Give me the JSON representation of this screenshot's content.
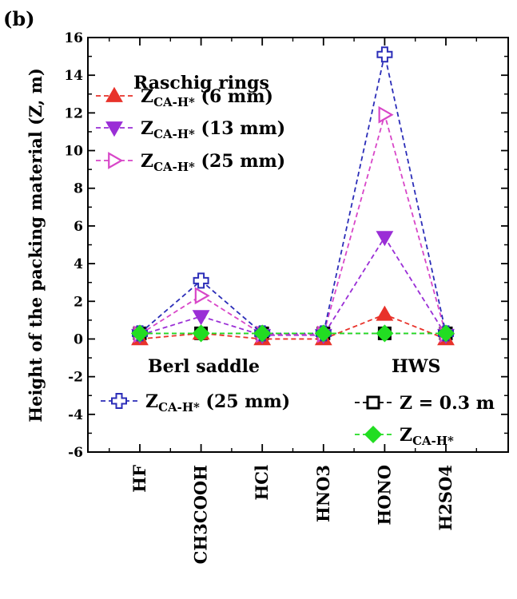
{
  "panel_label": "(b)",
  "chart_data": {
    "type": "line",
    "ylabel": "Height of the packing material (Z, m)",
    "xlabel": "",
    "ylim": [
      -6,
      16
    ],
    "yticks": [
      -6,
      -4,
      -2,
      0,
      2,
      4,
      6,
      8,
      10,
      12,
      14,
      16
    ],
    "categories": [
      "HF",
      "CH3COOH",
      "HCl",
      "HNO3",
      "HONO",
      "H2SO4"
    ],
    "legend_groups": [
      {
        "title": "Raschig rings",
        "placement": "top-left"
      },
      {
        "title": "Berl saddle",
        "placement": "middle-left"
      },
      {
        "title": "HWS",
        "placement": "middle-right"
      }
    ],
    "series": [
      {
        "name": "ZCA-H* (6 mm)",
        "label_main": "Z",
        "label_sub": "CA-H*",
        "label_tail": " (6 mm)",
        "group": "Raschig rings",
        "color": "#e8322a",
        "marker": "triangle-up",
        "filled": true,
        "values": [
          0.0,
          0.3,
          0.0,
          0.0,
          1.3,
          0.0
        ]
      },
      {
        "name": "ZCA-H* (13 mm)",
        "label_main": "Z",
        "label_sub": "CA-H*",
        "label_tail": " (13 mm)",
        "group": "Raschig rings",
        "color": "#9a2ed6",
        "marker": "triangle-down",
        "filled": true,
        "values": [
          0.2,
          1.2,
          0.2,
          0.2,
          5.4,
          0.2
        ]
      },
      {
        "name": "ZCA-H* (25 mm)",
        "label_main": "Z",
        "label_sub": "CA-H*",
        "label_tail": " (25 mm)",
        "group": "Raschig rings",
        "color": "#d846c8",
        "marker": "triangle-right",
        "filled": false,
        "values": [
          0.25,
          2.3,
          0.25,
          0.25,
          11.9,
          0.25
        ]
      },
      {
        "name": "ZCA-H* (25 mm)",
        "label_main": "Z",
        "label_sub": "CA-H*",
        "label_tail": " (25 mm)",
        "group": "Berl saddle",
        "color": "#2b2db8",
        "marker": "cross",
        "filled": false,
        "values": [
          0.3,
          3.1,
          0.3,
          0.3,
          15.1,
          0.3
        ]
      },
      {
        "name": "Z = 0.3 m",
        "label_main": "Z = 0.3 m",
        "label_sub": "",
        "label_tail": "",
        "group": "HWS",
        "color": "#000000",
        "marker": "square",
        "filled": false,
        "values": [
          0.3,
          0.3,
          0.3,
          0.3,
          0.3,
          0.3
        ]
      },
      {
        "name": "ZCA-H*",
        "label_main": "Z",
        "label_sub": "CA-H*",
        "label_tail": "",
        "group": "HWS",
        "color": "#22dd22",
        "marker": "diamond",
        "filled": true,
        "values": [
          0.3,
          0.3,
          0.3,
          0.3,
          0.3,
          0.3
        ]
      }
    ]
  }
}
